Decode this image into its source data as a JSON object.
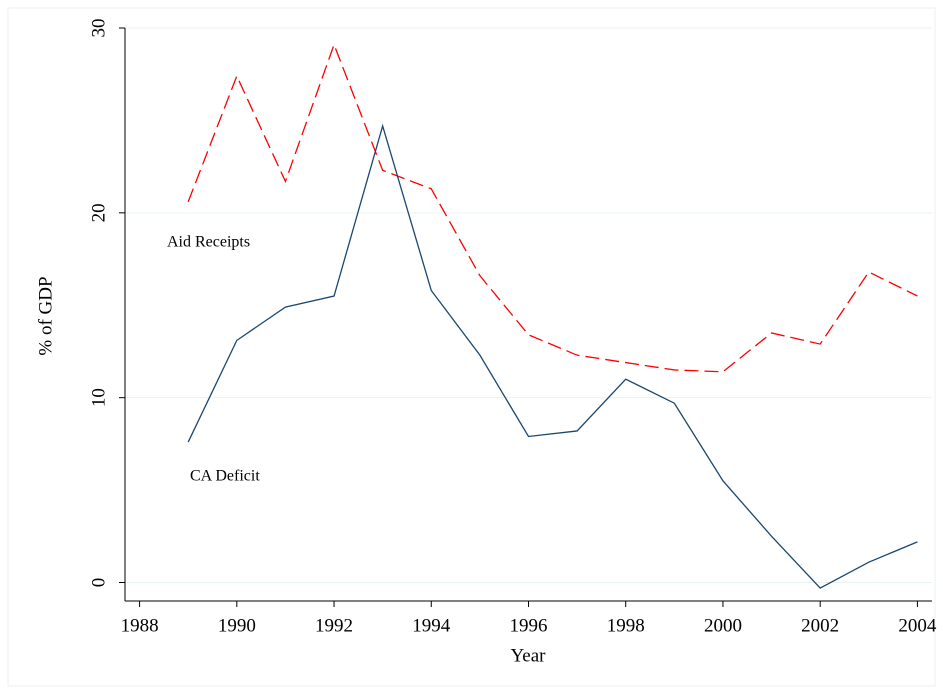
{
  "chart_data": {
    "type": "line",
    "x_label": "Year",
    "y_label": "% of GDP",
    "x": [
      1989,
      1990,
      1991,
      1992,
      1993,
      1994,
      1995,
      1996,
      1997,
      1998,
      1999,
      2000,
      2001,
      2002,
      2003,
      2004
    ],
    "series": [
      {
        "name": "Aid Receipts",
        "color": "#ff0000",
        "dashed": true,
        "values": [
          20.6,
          27.4,
          21.7,
          29.1,
          22.3,
          21.3,
          16.6,
          13.4,
          12.3,
          11.9,
          11.5,
          11.4,
          13.5,
          12.9,
          16.8,
          15.5
        ]
      },
      {
        "name": "CA Deficit",
        "color": "#1a476f",
        "dashed": false,
        "values": [
          7.6,
          13.1,
          14.9,
          15.5,
          24.7,
          15.8,
          12.3,
          7.9,
          8.2,
          11.0,
          9.7,
          5.5,
          2.5,
          -0.3,
          1.1,
          2.2
        ]
      }
    ],
    "xlim": [
      1987.7,
      2004.3
    ],
    "xticks": [
      1988,
      1990,
      1992,
      1994,
      1996,
      1998,
      2000,
      2002,
      2004
    ],
    "ylim": [
      -1,
      30
    ],
    "yticks": [
      0,
      10,
      20,
      30
    ],
    "grid": true
  }
}
